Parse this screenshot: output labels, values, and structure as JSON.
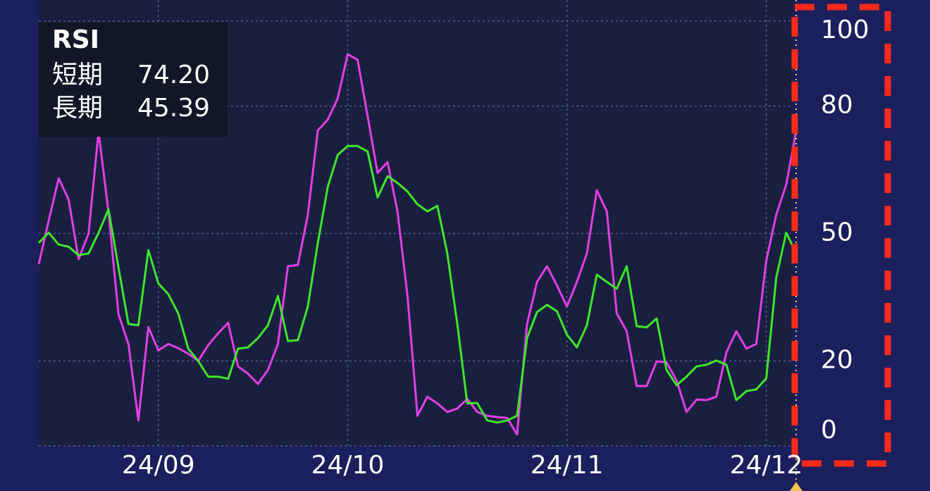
{
  "chart_data": {
    "type": "line",
    "title": "RSI",
    "categories": [
      null,
      null,
      null,
      null,
      null,
      null,
      null,
      null,
      null,
      null,
      null,
      null,
      "24/09",
      null,
      null,
      null,
      null,
      null,
      null,
      null,
      null,
      null,
      null,
      null,
      null,
      null,
      null,
      null,
      null,
      null,
      null,
      "24/10",
      null,
      null,
      null,
      null,
      null,
      null,
      null,
      null,
      null,
      null,
      null,
      null,
      null,
      null,
      null,
      null,
      null,
      null,
      null,
      null,
      null,
      "24/11",
      null,
      null,
      null,
      null,
      null,
      null,
      null,
      null,
      null,
      null,
      null,
      null,
      null,
      null,
      null,
      null,
      null,
      null,
      null,
      "24/12",
      null,
      null,
      null
    ],
    "series": [
      {
        "name": "短期",
        "color": "#e23ee6",
        "latest_label": "74.20",
        "values": [
          42.8,
          53,
          63,
          58,
          44,
          50,
          74,
          55,
          31,
          24,
          6,
          28,
          22.5,
          24,
          23,
          21.7,
          20,
          23.7,
          26.5,
          29,
          18.7,
          17,
          14.6,
          17.9,
          24,
          42.3,
          42.6,
          54.4,
          74.3,
          76.8,
          81.8,
          92.2,
          90.9,
          77.6,
          64.3,
          66.8,
          55.2,
          35.3,
          7.1,
          11.6,
          10,
          8,
          8.8,
          11.1,
          8,
          7.1,
          6.8,
          6.6,
          2.7,
          28.7,
          38.6,
          42.3,
          37.8,
          32.8,
          38.6,
          45.3,
          60.2,
          55.2,
          31.2,
          27,
          14.1,
          14.1,
          19.9,
          19.7,
          15.4,
          8,
          10.9,
          10.8,
          11.6,
          22,
          27,
          22.9,
          24,
          43.6,
          54.4,
          61.5,
          74.2
        ]
      },
      {
        "name": "長期",
        "color": "#3ee62a",
        "latest_label": "45.39",
        "values": [
          47.8,
          50.2,
          47.4,
          46.9,
          44.9,
          45.3,
          50.2,
          55.7,
          42,
          28.7,
          28.4,
          46.1,
          38.3,
          35.7,
          31.2,
          22.9,
          20,
          16.3,
          16.3,
          15.8,
          22.9,
          23.2,
          25.4,
          28.4,
          35.3,
          24.7,
          24.9,
          32.8,
          47.8,
          61,
          68.5,
          70.6,
          70.6,
          69.3,
          58.5,
          63.5,
          61.9,
          59.9,
          56.9,
          55.2,
          56.5,
          45.3,
          28.7,
          10,
          10.1,
          6,
          5.5,
          6,
          7.1,
          25.4,
          31.5,
          33.2,
          31.7,
          26.2,
          23.2,
          28.4,
          40.3,
          38.6,
          37,
          42.3,
          28.2,
          27.9,
          30,
          17.9,
          14.3,
          16.3,
          18.7,
          19.1,
          20.1,
          19.1,
          10.8,
          12.9,
          13.3,
          15.9,
          39.5,
          50.2,
          45.39
        ]
      }
    ],
    "ylim": [
      0,
      100
    ],
    "yticks": [
      0,
      20,
      50,
      80,
      100
    ],
    "grid": true
  }
}
